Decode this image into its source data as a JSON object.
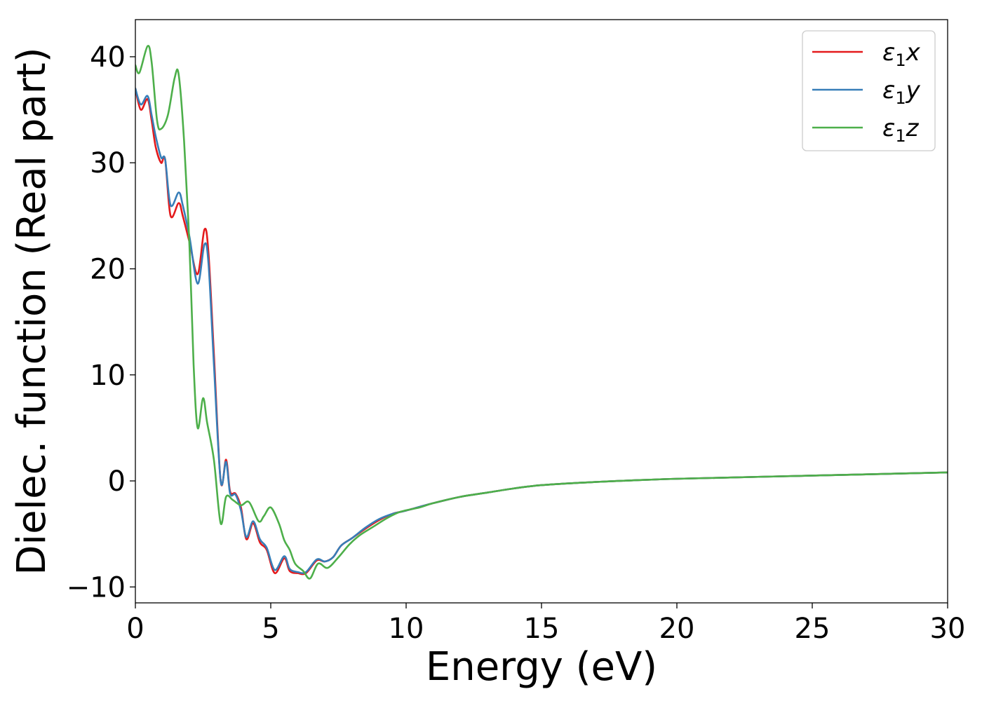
{
  "chart_data": {
    "type": "line",
    "title": "",
    "xlabel": "Energy (eV)",
    "ylabel": "Dielec. function (Real part)",
    "xlim": [
      0,
      30
    ],
    "ylim": [
      -11.5,
      43.5
    ],
    "xticks": [
      0,
      5,
      10,
      15,
      20,
      25,
      30
    ],
    "yticks": [
      -10,
      0,
      10,
      20,
      30,
      40
    ],
    "xtick_labels": [
      "0",
      "5",
      "10",
      "15",
      "20",
      "25",
      "30"
    ],
    "ytick_labels": [
      "−10",
      "0",
      "10",
      "20",
      "30",
      "40"
    ],
    "grid": false,
    "legend_position": "top-right",
    "series": [
      {
        "name": "ε1x",
        "legend_base": "ε",
        "legend_sub": "1",
        "legend_suffix": "x",
        "color": "#e41a1c",
        "points": [
          [
            0,
            37
          ],
          [
            0.2,
            35
          ],
          [
            0.45,
            36
          ],
          [
            0.6,
            34
          ],
          [
            0.75,
            31.5
          ],
          [
            0.95,
            30
          ],
          [
            1.1,
            30.3
          ],
          [
            1.3,
            25
          ],
          [
            1.6,
            26.2
          ],
          [
            1.75,
            25
          ],
          [
            2,
            22.5
          ],
          [
            2.3,
            19.5
          ],
          [
            2.55,
            23.7
          ],
          [
            2.7,
            21.5
          ],
          [
            2.9,
            12
          ],
          [
            3.15,
            0
          ],
          [
            3.35,
            2
          ],
          [
            3.5,
            -1
          ],
          [
            3.7,
            -1.2
          ],
          [
            3.9,
            -2.5
          ],
          [
            4.1,
            -5.5
          ],
          [
            4.35,
            -4
          ],
          [
            4.6,
            -5.8
          ],
          [
            4.85,
            -6.5
          ],
          [
            5.15,
            -8.7
          ],
          [
            5.5,
            -7.3
          ],
          [
            5.7,
            -8.5
          ],
          [
            6,
            -8.7
          ],
          [
            6.3,
            -8.7
          ],
          [
            6.7,
            -7.5
          ],
          [
            7,
            -7.6
          ],
          [
            7.3,
            -7.2
          ],
          [
            7.6,
            -6.1
          ],
          [
            8,
            -5.4
          ],
          [
            8.5,
            -4.5
          ],
          [
            9,
            -3.7
          ],
          [
            9.5,
            -3.1
          ],
          [
            10,
            -2.8
          ],
          [
            11,
            -2.1
          ],
          [
            12,
            -1.5
          ],
          [
            13,
            -1.1
          ],
          [
            14,
            -0.7
          ],
          [
            15,
            -0.4
          ],
          [
            17,
            -0.1
          ],
          [
            20,
            0.2
          ],
          [
            25,
            0.5
          ],
          [
            30,
            0.8
          ]
        ]
      },
      {
        "name": "ε1y",
        "legend_base": "ε",
        "legend_sub": "1",
        "legend_suffix": "y",
        "color": "#377eb8",
        "points": [
          [
            0,
            37
          ],
          [
            0.2,
            35.5
          ],
          [
            0.45,
            36.3
          ],
          [
            0.6,
            34.5
          ],
          [
            0.75,
            32.5
          ],
          [
            0.95,
            30.5
          ],
          [
            1.1,
            30.3
          ],
          [
            1.3,
            26
          ],
          [
            1.6,
            27.2
          ],
          [
            1.75,
            26
          ],
          [
            2,
            23
          ],
          [
            2.3,
            18.6
          ],
          [
            2.55,
            22.3
          ],
          [
            2.7,
            20.5
          ],
          [
            2.9,
            11
          ],
          [
            3.15,
            0
          ],
          [
            3.35,
            1.8
          ],
          [
            3.5,
            -1.2
          ],
          [
            3.7,
            -1.3
          ],
          [
            3.9,
            -2.8
          ],
          [
            4.1,
            -5.3
          ],
          [
            4.35,
            -3.8
          ],
          [
            4.6,
            -5.5
          ],
          [
            4.85,
            -6.3
          ],
          [
            5.15,
            -8.4
          ],
          [
            5.5,
            -7.1
          ],
          [
            5.7,
            -8.3
          ],
          [
            6,
            -8.6
          ],
          [
            6.3,
            -8.6
          ],
          [
            6.7,
            -7.4
          ],
          [
            7,
            -7.6
          ],
          [
            7.3,
            -7.2
          ],
          [
            7.6,
            -6.1
          ],
          [
            8,
            -5.4
          ],
          [
            8.5,
            -4.4
          ],
          [
            9,
            -3.6
          ],
          [
            9.5,
            -3.1
          ],
          [
            10,
            -2.8
          ],
          [
            11,
            -2.1
          ],
          [
            12,
            -1.5
          ],
          [
            13,
            -1.1
          ],
          [
            14,
            -0.7
          ],
          [
            15,
            -0.4
          ],
          [
            17,
            -0.1
          ],
          [
            20,
            0.2
          ],
          [
            25,
            0.5
          ],
          [
            30,
            0.8
          ]
        ]
      },
      {
        "name": "ε1z",
        "legend_base": "ε",
        "legend_sub": "1",
        "legend_suffix": "z",
        "color": "#4daf4a",
        "points": [
          [
            0,
            39.2
          ],
          [
            0.15,
            38.5
          ],
          [
            0.45,
            41
          ],
          [
            0.6,
            39.5
          ],
          [
            0.8,
            34
          ],
          [
            0.95,
            33.2
          ],
          [
            1.2,
            34.5
          ],
          [
            1.45,
            38
          ],
          [
            1.6,
            38.3
          ],
          [
            1.8,
            32
          ],
          [
            2,
            22
          ],
          [
            2.15,
            11
          ],
          [
            2.3,
            5
          ],
          [
            2.5,
            7.8
          ],
          [
            2.65,
            5.5
          ],
          [
            2.9,
            2
          ],
          [
            3.15,
            -4
          ],
          [
            3.35,
            -1.5
          ],
          [
            3.6,
            -1.8
          ],
          [
            3.9,
            -2.3
          ],
          [
            4.2,
            -2
          ],
          [
            4.55,
            -3.8
          ],
          [
            4.75,
            -3.3
          ],
          [
            5,
            -2.5
          ],
          [
            5.3,
            -4
          ],
          [
            5.5,
            -5.6
          ],
          [
            5.7,
            -6.5
          ],
          [
            5.9,
            -7.8
          ],
          [
            6.2,
            -8.5
          ],
          [
            6.45,
            -9.2
          ],
          [
            6.75,
            -7.8
          ],
          [
            7.1,
            -8.2
          ],
          [
            7.5,
            -7.2
          ],
          [
            7.9,
            -6
          ],
          [
            8.3,
            -5.1
          ],
          [
            8.8,
            -4.3
          ],
          [
            9.3,
            -3.5
          ],
          [
            9.8,
            -2.9
          ],
          [
            10.5,
            -2.5
          ],
          [
            11,
            -2.1
          ],
          [
            12,
            -1.5
          ],
          [
            13,
            -1.1
          ],
          [
            14,
            -0.7
          ],
          [
            15,
            -0.4
          ],
          [
            17,
            -0.1
          ],
          [
            20,
            0.2
          ],
          [
            25,
            0.5
          ],
          [
            30,
            0.8
          ]
        ]
      }
    ]
  }
}
